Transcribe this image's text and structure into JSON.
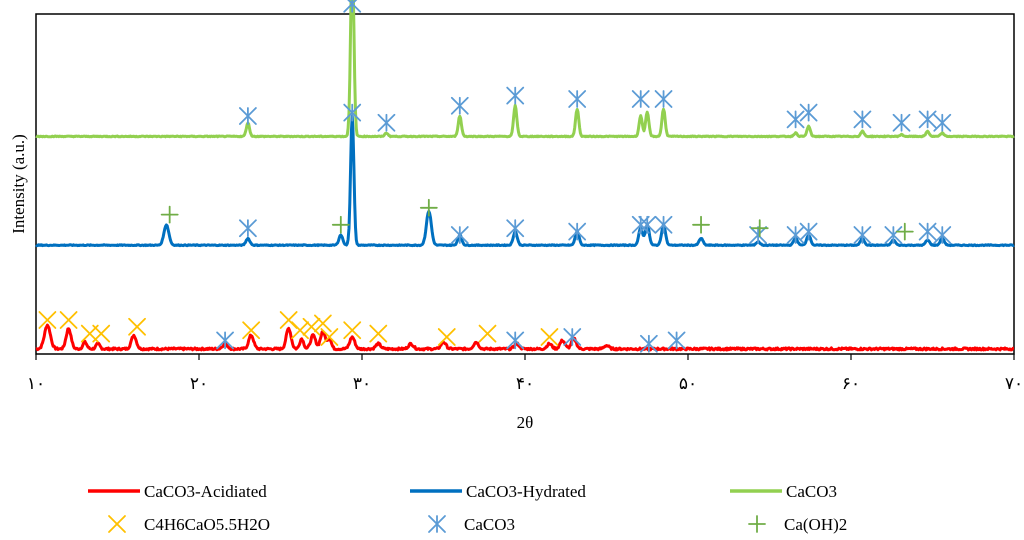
{
  "chart_data": {
    "type": "line",
    "title": "",
    "xlabel": "2θ",
    "ylabel": "Intensity (a.u.)",
    "xlim": [
      10,
      70
    ],
    "ylim": [
      0,
      100
    ],
    "x_ticks": [
      10,
      20,
      30,
      40,
      50,
      60,
      70
    ],
    "x_tick_labels": [
      "۱۰",
      "۲۰",
      "۳۰",
      "۴۰",
      "۵۰",
      "۶۰",
      "۷۰"
    ],
    "grid": false,
    "legend_position": "bottom",
    "series": [
      {
        "name": "CaCO3-Acidiated",
        "color": "#ff0000",
        "baseline": 1.5,
        "peaks": [
          {
            "x": 10.7,
            "h": 7,
            "w": 0.18
          },
          {
            "x": 12.0,
            "h": 6,
            "w": 0.15
          },
          {
            "x": 13.0,
            "h": 2,
            "w": 0.12
          },
          {
            "x": 13.8,
            "h": 1.5,
            "w": 0.12
          },
          {
            "x": 16.0,
            "h": 4,
            "w": 0.15
          },
          {
            "x": 21.6,
            "h": 1.5,
            "w": 0.15
          },
          {
            "x": 23.2,
            "h": 4,
            "w": 0.15
          },
          {
            "x": 25.5,
            "h": 6,
            "w": 0.15
          },
          {
            "x": 26.3,
            "h": 3,
            "w": 0.12
          },
          {
            "x": 27.0,
            "h": 4,
            "w": 0.15
          },
          {
            "x": 27.6,
            "h": 5,
            "w": 0.15
          },
          {
            "x": 28.0,
            "h": 3,
            "w": 0.12
          },
          {
            "x": 29.4,
            "h": 3.5,
            "w": 0.15
          },
          {
            "x": 31.0,
            "h": 1.5,
            "w": 0.15
          },
          {
            "x": 33.0,
            "h": 1.5,
            "w": 0.15
          },
          {
            "x": 35.0,
            "h": 2,
            "w": 0.15
          },
          {
            "x": 37.0,
            "h": 2,
            "w": 0.15
          },
          {
            "x": 39.5,
            "h": 1.5,
            "w": 0.15
          },
          {
            "x": 41.5,
            "h": 1.5,
            "w": 0.15
          },
          {
            "x": 42.3,
            "h": 2.5,
            "w": 0.15
          },
          {
            "x": 43.0,
            "h": 3,
            "w": 0.15
          },
          {
            "x": 45.0,
            "h": 1,
            "w": 0.15
          }
        ]
      },
      {
        "name": "CaCO3-Hydrated",
        "color": "#0070c0",
        "baseline": 32,
        "peaks": [
          {
            "x": 18.0,
            "h": 6,
            "w": 0.15
          },
          {
            "x": 23.0,
            "h": 2,
            "w": 0.12
          },
          {
            "x": 28.7,
            "h": 3,
            "w": 0.12
          },
          {
            "x": 29.4,
            "h": 38,
            "w": 0.1
          },
          {
            "x": 34.1,
            "h": 10,
            "w": 0.15
          },
          {
            "x": 36.0,
            "h": 3,
            "w": 0.12
          },
          {
            "x": 39.4,
            "h": 4,
            "w": 0.12
          },
          {
            "x": 43.2,
            "h": 4,
            "w": 0.12
          },
          {
            "x": 47.1,
            "h": 5,
            "w": 0.12
          },
          {
            "x": 47.5,
            "h": 6,
            "w": 0.12
          },
          {
            "x": 48.5,
            "h": 6,
            "w": 0.12
          },
          {
            "x": 50.8,
            "h": 2,
            "w": 0.12
          },
          {
            "x": 54.3,
            "h": 1,
            "w": 0.12
          },
          {
            "x": 56.6,
            "h": 2,
            "w": 0.12
          },
          {
            "x": 57.4,
            "h": 3,
            "w": 0.12
          },
          {
            "x": 60.7,
            "h": 2,
            "w": 0.12
          },
          {
            "x": 62.6,
            "h": 1.5,
            "w": 0.12
          },
          {
            "x": 64.7,
            "h": 1.5,
            "w": 0.12
          },
          {
            "x": 65.6,
            "h": 2,
            "w": 0.12
          }
        ]
      },
      {
        "name": "CaCO3",
        "color": "#92d050",
        "baseline": 64,
        "peaks": [
          {
            "x": 23.0,
            "h": 4,
            "w": 0.1
          },
          {
            "x": 29.4,
            "h": 53,
            "w": 0.1
          },
          {
            "x": 31.5,
            "h": 1,
            "w": 0.1
          },
          {
            "x": 36.0,
            "h": 6,
            "w": 0.1
          },
          {
            "x": 39.4,
            "h": 9,
            "w": 0.1
          },
          {
            "x": 43.2,
            "h": 8,
            "w": 0.1
          },
          {
            "x": 47.1,
            "h": 6,
            "w": 0.1
          },
          {
            "x": 47.5,
            "h": 7,
            "w": 0.1
          },
          {
            "x": 48.5,
            "h": 8,
            "w": 0.1
          },
          {
            "x": 56.6,
            "h": 1,
            "w": 0.1
          },
          {
            "x": 57.4,
            "h": 3,
            "w": 0.1
          },
          {
            "x": 60.7,
            "h": 1.5,
            "w": 0.1
          },
          {
            "x": 63.1,
            "h": 0.5,
            "w": 0.1
          },
          {
            "x": 64.7,
            "h": 1.5,
            "w": 0.1
          },
          {
            "x": 65.6,
            "h": 1,
            "w": 0.1
          }
        ]
      }
    ],
    "marker_series": [
      {
        "name": "C4H6CaO5.5H2O",
        "color": "#ffc000",
        "symbol": "x",
        "points": [
          [
            10.7,
            10
          ],
          [
            12.0,
            10
          ],
          [
            13.3,
            6
          ],
          [
            14.0,
            6
          ],
          [
            16.2,
            8
          ],
          [
            23.2,
            7
          ],
          [
            25.5,
            10
          ],
          [
            26.2,
            7
          ],
          [
            26.9,
            8
          ],
          [
            27.6,
            9
          ],
          [
            28.0,
            5
          ],
          [
            29.4,
            7
          ],
          [
            31.0,
            6
          ],
          [
            35.2,
            5
          ],
          [
            37.7,
            6
          ],
          [
            41.5,
            5
          ]
        ]
      },
      {
        "name": "CaCO3",
        "color": "#5b9bd5",
        "symbol": "asterisk",
        "points": [
          [
            21.6,
            4
          ],
          [
            23.0,
            37
          ],
          [
            29.4,
            71
          ],
          [
            36.0,
            35
          ],
          [
            39.4,
            37
          ],
          [
            43.2,
            36
          ],
          [
            47.1,
            38
          ],
          [
            47.5,
            38
          ],
          [
            48.5,
            38
          ],
          [
            54.3,
            35
          ],
          [
            56.6,
            35
          ],
          [
            57.4,
            36
          ],
          [
            60.7,
            35
          ],
          [
            62.6,
            35
          ],
          [
            64.7,
            36
          ],
          [
            65.6,
            35
          ],
          [
            23.0,
            70
          ],
          [
            29.4,
            103
          ],
          [
            31.5,
            68
          ],
          [
            36.0,
            73
          ],
          [
            39.4,
            76
          ],
          [
            43.2,
            75
          ],
          [
            47.1,
            75
          ],
          [
            48.5,
            75
          ],
          [
            56.6,
            69
          ],
          [
            57.4,
            71
          ],
          [
            60.7,
            69
          ],
          [
            63.1,
            68
          ],
          [
            64.7,
            69
          ],
          [
            65.6,
            68
          ],
          [
            39.4,
            4
          ],
          [
            42.9,
            5
          ],
          [
            47.6,
            3
          ],
          [
            49.3,
            4
          ]
        ]
      },
      {
        "name": "Ca(OH)2",
        "color": "#70ad47",
        "symbol": "plus",
        "points": [
          [
            18.2,
            41
          ],
          [
            28.7,
            38
          ],
          [
            34.1,
            43
          ],
          [
            50.8,
            38
          ],
          [
            54.4,
            37
          ],
          [
            63.3,
            36
          ]
        ]
      }
    ]
  }
}
